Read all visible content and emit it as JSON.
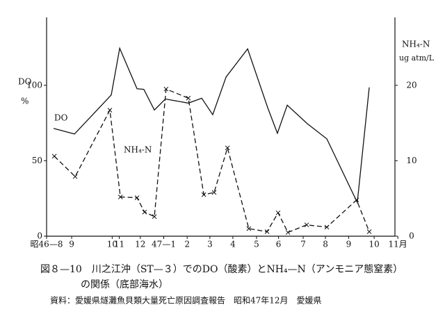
{
  "chart_data": {
    "type": "line",
    "title": "図８—10　川之江沖（ST—３）でのDO（酸素）とNH₄—N（アンモニア態窒素）",
    "subtitle": "の関係（底部海水）",
    "source": "資料：愛媛県燧灘魚貝類大量死亡原因調査報告　昭和47年12月　愛媛県",
    "ylabel": "DO",
    "ylabel_unit": "%",
    "y2label": "NH₄-N",
    "y2label_unit": "ug atm/L",
    "xlim": [
      0,
      15
    ],
    "xticks": [
      {
        "value": 0,
        "label": "昭46—8"
      },
      {
        "value": 1.07,
        "label": "9"
      },
      {
        "value": 2.8,
        "label": "10"
      },
      {
        "value": 3.1,
        "label": "11"
      },
      {
        "value": 4.0,
        "label": "12"
      },
      {
        "value": 5.0,
        "label": "47—1"
      },
      {
        "value": 6.0,
        "label": "2"
      },
      {
        "value": 6.97,
        "label": "3"
      },
      {
        "value": 7.95,
        "label": "4"
      },
      {
        "value": 8.96,
        "label": "5"
      },
      {
        "value": 9.9,
        "label": "6"
      },
      {
        "value": 10.95,
        "label": "7"
      },
      {
        "value": 11.9,
        "label": "8"
      },
      {
        "value": 12.89,
        "label": "9"
      },
      {
        "value": 13.98,
        "label": "10"
      },
      {
        "value": 14.99,
        "label": "11月"
      }
    ],
    "ylim": [
      0,
      145
    ],
    "yticks": [
      0,
      50,
      100
    ],
    "y2lim": [
      0,
      29
    ],
    "y2ticks": [
      0,
      10,
      20
    ],
    "series": [
      {
        "name": "DO",
        "color": "#111111",
        "style": "solid",
        "marker": "none",
        "x": [
          0.3,
          1.19,
          2.76,
          3.12,
          3.86,
          4.15,
          4.6,
          5.07,
          6.05,
          6.62,
          7.09,
          7.66,
          8.58,
          9.44,
          9.85,
          10.27,
          11.13,
          11.96,
          13.26,
          13.77
        ],
        "values": [
          71.4,
          67.7,
          93.6,
          124.5,
          97.7,
          97.3,
          83.6,
          90.9,
          88.2,
          91.4,
          80.5,
          105.5,
          124.1,
          85.0,
          68.2,
          86.8,
          74.5,
          64.5,
          22.3,
          98.6
        ]
      },
      {
        "name": "NH₄-N",
        "color": "#111111",
        "style": "dashed",
        "marker": "x",
        "axis": "y2",
        "x": [
          0.33,
          1.22,
          2.7,
          3.15,
          3.86,
          4.18,
          4.6,
          5.1,
          6.05,
          6.71,
          7.15,
          7.72,
          8.63,
          9.41,
          9.88,
          10.3,
          11.1,
          11.96,
          13.23,
          13.77
        ],
        "values": [
          10.6,
          7.9,
          16.7,
          5.2,
          5.1,
          3.2,
          2.6,
          19.5,
          18.3,
          5.5,
          5.8,
          11.7,
          1.0,
          0.6,
          3.1,
          0.5,
          1.5,
          1.2,
          4.8,
          0.6
        ]
      }
    ]
  }
}
